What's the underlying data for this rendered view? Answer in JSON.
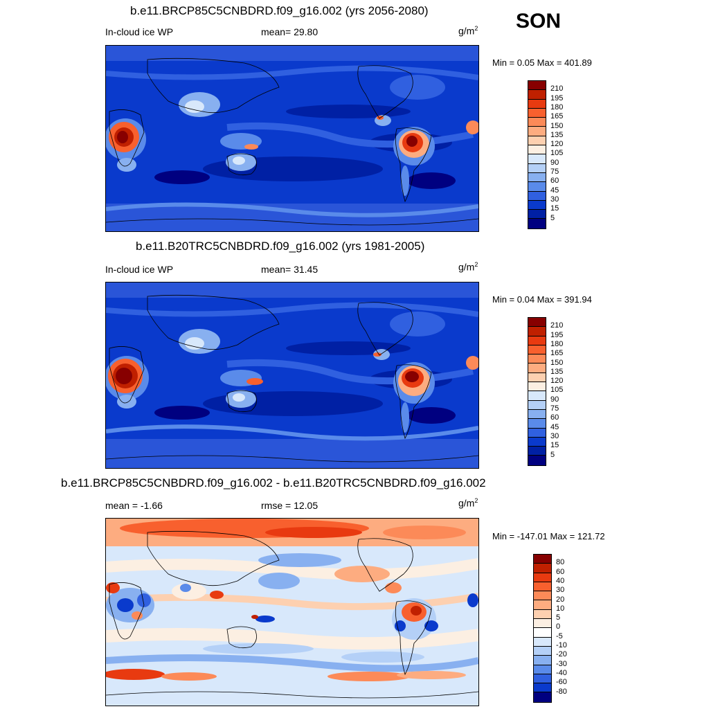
{
  "season": "SON",
  "panels": [
    {
      "title": "b.e11.BRCP85C5CNBDRD.f09_g16.002 (yrs 2056-2080)",
      "left_label": "In-cloud ice WP",
      "stat_text": "mean=  29.80",
      "units": "g/m",
      "units_sup": "2",
      "minmax": "Min =   0.05 Max = 401.89",
      "colorbar": {
        "labels": [
          "210",
          "195",
          "180",
          "165",
          "150",
          "135",
          "120",
          "105",
          "90",
          "75",
          "60",
          "45",
          "30",
          "15",
          "5"
        ],
        "colors": [
          "#870000",
          "#c02000",
          "#e83a10",
          "#f8602e",
          "#fc8a58",
          "#fdac80",
          "#fdd0b0",
          "#fcefe2",
          "#d8e8fb",
          "#b4d0f7",
          "#88b0f0",
          "#5a8bea",
          "#3060e0",
          "#0a3acc",
          "#0020a4",
          "#000080"
        ]
      }
    },
    {
      "title": "b.e11.B20TRC5CNBDRD.f09_g16.002 (yrs 1981-2005)",
      "left_label": "In-cloud ice WP",
      "stat_text": "mean=  31.45",
      "units": "g/m",
      "units_sup": "2",
      "minmax": "Min =   0.04 Max = 391.94",
      "colorbar": {
        "labels": [
          "210",
          "195",
          "180",
          "165",
          "150",
          "135",
          "120",
          "105",
          "90",
          "75",
          "60",
          "45",
          "30",
          "15",
          "5"
        ],
        "colors": [
          "#870000",
          "#c02000",
          "#e83a10",
          "#f8602e",
          "#fc8a58",
          "#fdac80",
          "#fdd0b0",
          "#fcefe2",
          "#d8e8fb",
          "#b4d0f7",
          "#88b0f0",
          "#5a8bea",
          "#3060e0",
          "#0a3acc",
          "#0020a4",
          "#000080"
        ]
      }
    },
    {
      "title": "b.e11.BRCP85C5CNBDRD.f09_g16.002 - b.e11.B20TRC5CNBDRD.f09_g16.002",
      "left_label": "mean =  -1.66",
      "stat_text": "rmse =  12.05",
      "units": "g/m",
      "units_sup": "2",
      "minmax": "Min = -147.01 Max = 121.72",
      "colorbar": {
        "labels": [
          "80",
          "60",
          "40",
          "30",
          "20",
          "10",
          "5",
          "0",
          "-5",
          "-10",
          "-20",
          "-30",
          "-40",
          "-60",
          "-80"
        ],
        "colors": [
          "#870000",
          "#c02000",
          "#e83a10",
          "#f8602e",
          "#fc8a58",
          "#fdac80",
          "#fdd0b0",
          "#fcefe2",
          "#ffffff",
          "#d8e8fb",
          "#b4d0f7",
          "#88b0f0",
          "#5a8bea",
          "#3060e0",
          "#0a3acc",
          "#000080"
        ]
      }
    }
  ]
}
